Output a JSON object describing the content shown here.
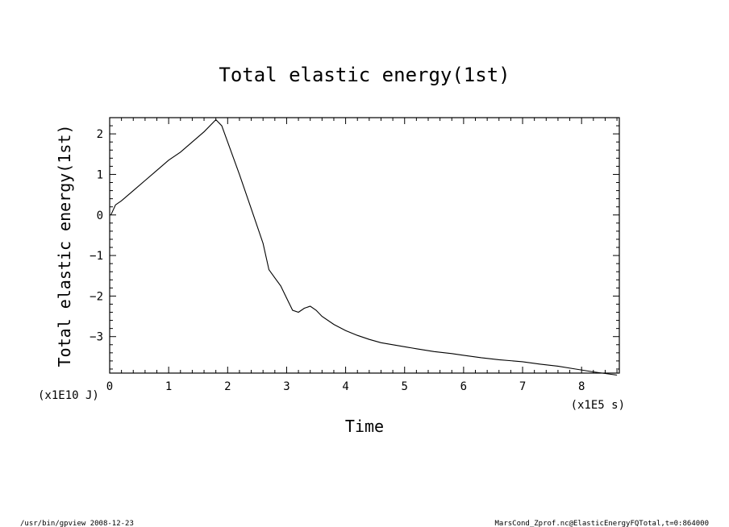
{
  "footer": {
    "left": "/usr/bin/gpview   2008-12-23",
    "right": "MarsCond_Zprof.nc@ElasticEnergyFQTotal,t=0:864000"
  },
  "chart_data": {
    "type": "line",
    "title": "Total elastic energy(1st)",
    "xlabel": "Time",
    "ylabel": "Total elastic energy(1st)",
    "x_unit_label": "(x1E5 s)",
    "y_unit_label": "(x1E10 J)",
    "xlim": [
      0,
      8.64
    ],
    "ylim": [
      -3.9,
      2.4
    ],
    "x_ticks": [
      0,
      1,
      2,
      3,
      4,
      5,
      6,
      7,
      8
    ],
    "x_tick_labels": [
      "0",
      "1",
      "2",
      "3",
      "4",
      "5",
      "6",
      "7",
      "8"
    ],
    "y_ticks": [
      2,
      1,
      0,
      -1,
      -2,
      -3
    ],
    "y_tick_labels": [
      "2",
      "1",
      "0",
      "−1",
      "−2",
      "−3"
    ],
    "grid": false,
    "series": [
      {
        "x": [
          0.02,
          0.1,
          0.2,
          0.4,
          0.6,
          0.8,
          1.0,
          1.2,
          1.4,
          1.6,
          1.8,
          1.9,
          2.0,
          2.2,
          2.4,
          2.6,
          2.7,
          2.8,
          2.9,
          3.0,
          3.1,
          3.2,
          3.3,
          3.4,
          3.5,
          3.6,
          3.8,
          4.0,
          4.2,
          4.4,
          4.6,
          4.8,
          5.0,
          5.2,
          5.5,
          5.8,
          6.0,
          6.3,
          6.6,
          7.0,
          7.3,
          7.6,
          7.9,
          8.2,
          8.5,
          8.6
        ],
        "y": [
          0.0,
          0.25,
          0.35,
          0.6,
          0.85,
          1.1,
          1.35,
          1.55,
          1.8,
          2.05,
          2.35,
          2.2,
          1.8,
          1.0,
          0.15,
          -0.7,
          -1.35,
          -1.55,
          -1.75,
          -2.05,
          -2.35,
          -2.4,
          -2.3,
          -2.25,
          -2.35,
          -2.5,
          -2.7,
          -2.85,
          -2.97,
          -3.07,
          -3.15,
          -3.2,
          -3.25,
          -3.3,
          -3.37,
          -3.42,
          -3.46,
          -3.52,
          -3.57,
          -3.62,
          -3.68,
          -3.73,
          -3.8,
          -3.87,
          -3.93,
          -3.95
        ]
      }
    ]
  }
}
